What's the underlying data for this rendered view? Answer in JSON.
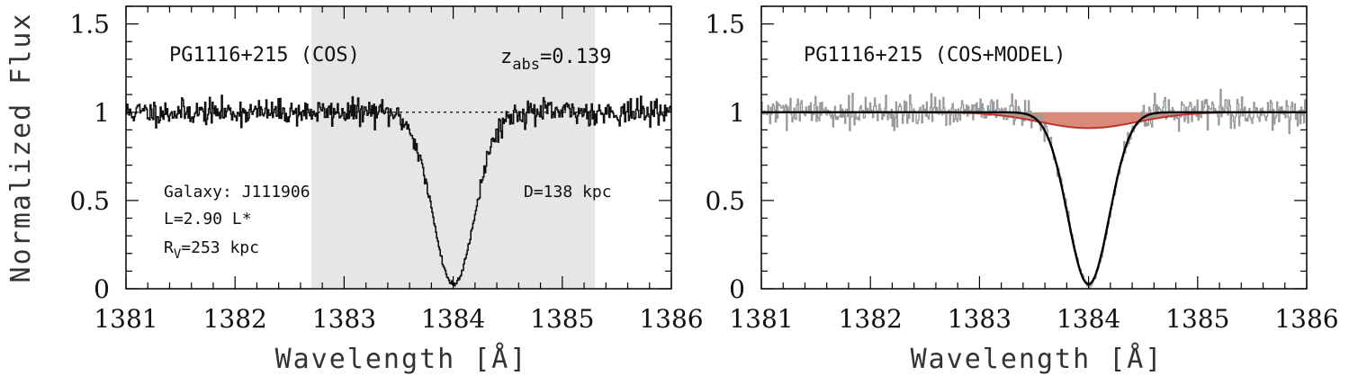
{
  "chart_data": [
    {
      "type": "line",
      "panel": "left",
      "xlabel": "Wavelength [Å]",
      "ylabel": "Normalized Flux",
      "xlim": [
        1381,
        1386
      ],
      "ylim": [
        0,
        1.6
      ],
      "x_ticks": [
        1381,
        1382,
        1383,
        1384,
        1385,
        1386
      ],
      "y_ticks": [
        0,
        0.5,
        1,
        1.5
      ],
      "x_tick_labels": [
        "1381",
        "1382",
        "1383",
        "1384",
        "1385",
        "1386"
      ],
      "y_tick_labels": [
        "0",
        "0.5",
        "1",
        "1.5"
      ],
      "continuum": 1,
      "shaded_region": [
        1382.7,
        1385.3
      ],
      "shade_color": "#e5e6e8",
      "absorption": {
        "center": 1384.0,
        "depth": 0.975,
        "sigma": 0.19
      },
      "noise_sigma": 0.035,
      "series": [
        {
          "name": "COS data",
          "color": "#111111",
          "sample": {
            "x": [
              1381.0,
              1382.0,
              1383.0,
              1383.5,
              1383.7,
              1383.9,
              1384.0,
              1384.1,
              1384.3,
              1384.5,
              1385.0,
              1386.0
            ],
            "y": [
              1.0,
              1.0,
              0.99,
              0.8,
              0.45,
              0.05,
              0.03,
              0.05,
              0.45,
              0.85,
              0.99,
              1.0
            ]
          }
        }
      ],
      "labels": {
        "title": "PG1116+215 (COS)",
        "z_prefix": "z",
        "z_sub": "abs",
        "z_value": "=0.139",
        "galaxy": "Galaxy: J111906",
        "luminosity": "L=2.90 L*",
        "rv_prefix": "R",
        "rv_sub": "V",
        "rv_value": "=253 kpc",
        "distance": "D=138 kpc"
      }
    },
    {
      "type": "line",
      "panel": "right",
      "xlabel": "Wavelength [Å]",
      "xlim": [
        1381,
        1386
      ],
      "ylim": [
        0,
        1.6
      ],
      "x_ticks": [
        1381,
        1382,
        1383,
        1384,
        1385,
        1386
      ],
      "y_ticks": [
        0,
        0.5,
        1,
        1.5
      ],
      "x_tick_labels": [
        "1381",
        "1382",
        "1383",
        "1384",
        "1385",
        "1386"
      ],
      "y_tick_labels": [
        "0",
        "0.5",
        "1",
        "1.5"
      ],
      "absorption": {
        "center": 1384.0,
        "depth": 0.975,
        "sigma": 0.19
      },
      "broad_component": {
        "center": 1384.0,
        "depth": 0.09,
        "sigma": 0.45
      },
      "noise_sigma": 0.04,
      "series": [
        {
          "name": "COS data",
          "color": "#9a9a9a"
        },
        {
          "name": "Model",
          "color": "#000000"
        },
        {
          "name": "Broad component",
          "color": "#c0322e",
          "fill": "#d98a78"
        }
      ],
      "labels": {
        "title": "PG1116+215 (COS+MODEL)"
      }
    }
  ]
}
